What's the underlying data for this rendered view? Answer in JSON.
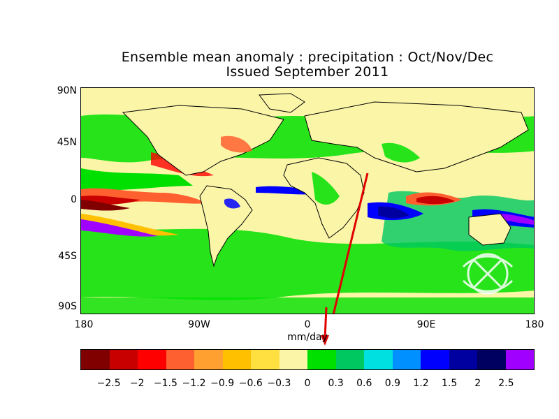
{
  "title": "Ensemble mean anomaly : precipitation : Oct/Nov/Dec",
  "subtitle": "Issued September 2011",
  "units": "mm/day",
  "lat_labels": [
    "90N",
    "45N",
    "0",
    "45S",
    "90S"
  ],
  "lon_labels": [
    "180",
    "90W",
    "0",
    "90E",
    "180"
  ],
  "colorbar": {
    "colors": [
      "#800000",
      "#c80000",
      "#ff0000",
      "#ff6030",
      "#ffa030",
      "#ffc000",
      "#ffe040",
      "#fbf5a8",
      "#00e000",
      "#00c860",
      "#00e0e0",
      "#0090ff",
      "#0000ff",
      "#0000a0",
      "#000060",
      "#a000ff"
    ],
    "labels": [
      "−2.5",
      "−2",
      "−1.5",
      "−1.2",
      "−0.9",
      "−0.6",
      "−0.3",
      "0",
      "0.3",
      "0.6",
      "0.9",
      "1.2",
      "1.5",
      "2",
      "2.5"
    ]
  },
  "annotation": {
    "arrow_color": "#e00000"
  }
}
